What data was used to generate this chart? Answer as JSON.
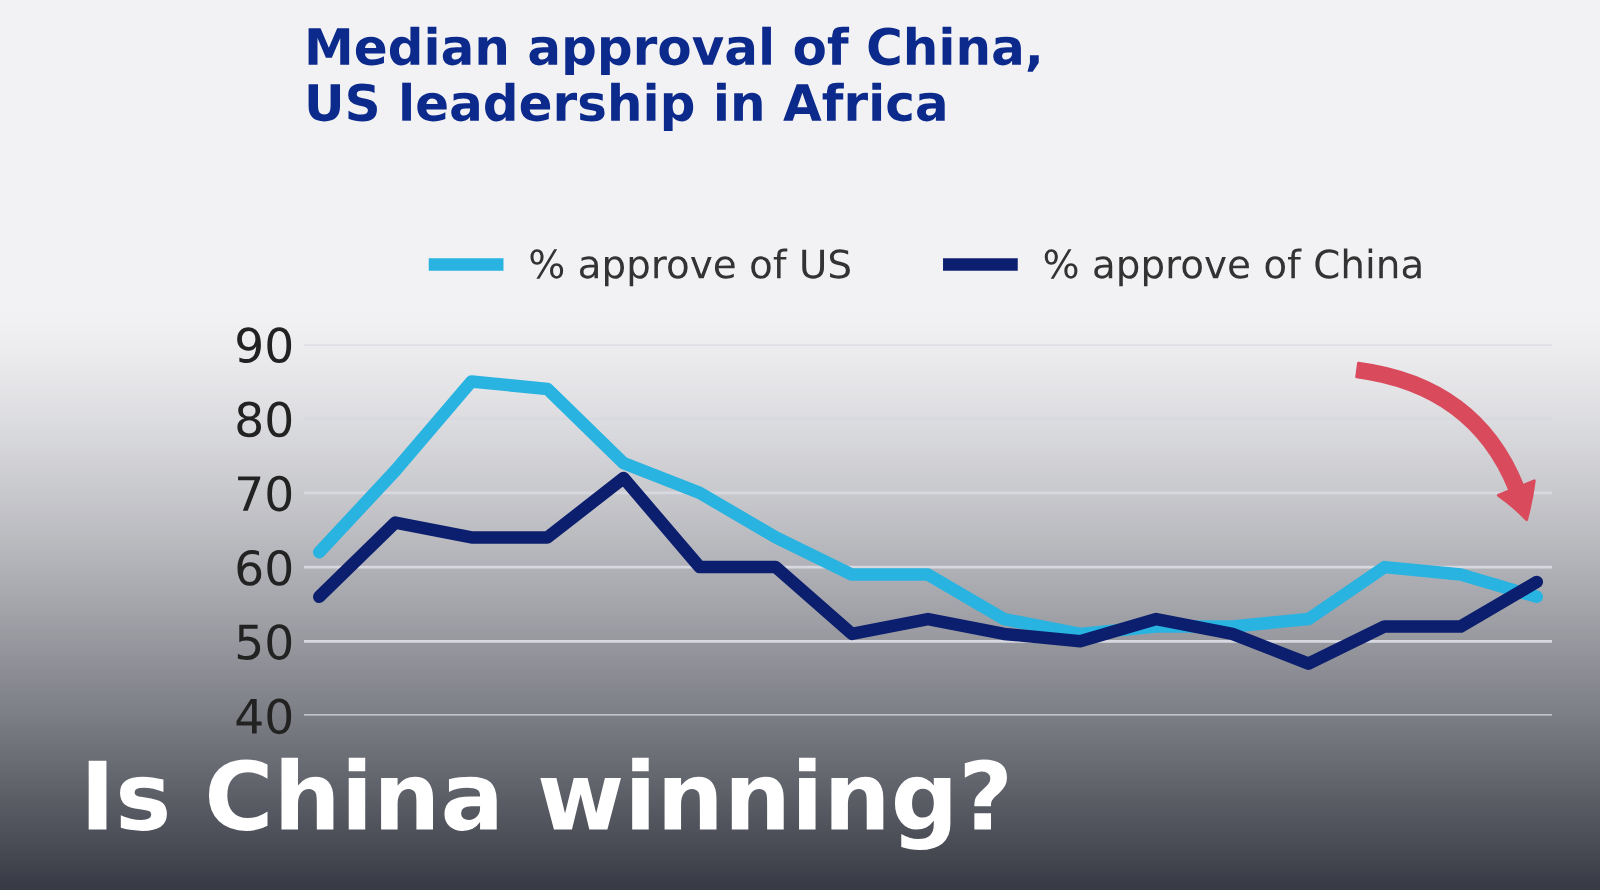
{
  "chart_data": {
    "type": "line",
    "title": "Median approval of China,\nUS leadership in Africa",
    "categories": [
      null,
      null,
      null,
      null,
      null,
      null,
      null,
      null,
      null,
      null,
      null,
      null,
      null,
      null,
      null,
      null,
      null
    ],
    "series": [
      {
        "name": "% approve of US",
        "color": "#29b3e0",
        "values": [
          62,
          73,
          85,
          84,
          74,
          70,
          64,
          59,
          59,
          53,
          51,
          52,
          52,
          53,
          60,
          59,
          56
        ]
      },
      {
        "name": "% approve of China",
        "color": "#0c1f6e",
        "values": [
          56,
          66,
          64,
          64,
          72,
          60,
          60,
          51,
          53,
          51,
          50,
          53,
          51,
          47,
          52,
          52,
          58
        ]
      }
    ],
    "ylim": [
      40,
      90
    ],
    "yticks": [
      40,
      50,
      60,
      70,
      80,
      90
    ],
    "grid": "y",
    "legend": "top",
    "marker": "none",
    "line_style": "solid",
    "tick_labels": "y",
    "annotations": [
      "Is China winning?"
    ]
  }
}
